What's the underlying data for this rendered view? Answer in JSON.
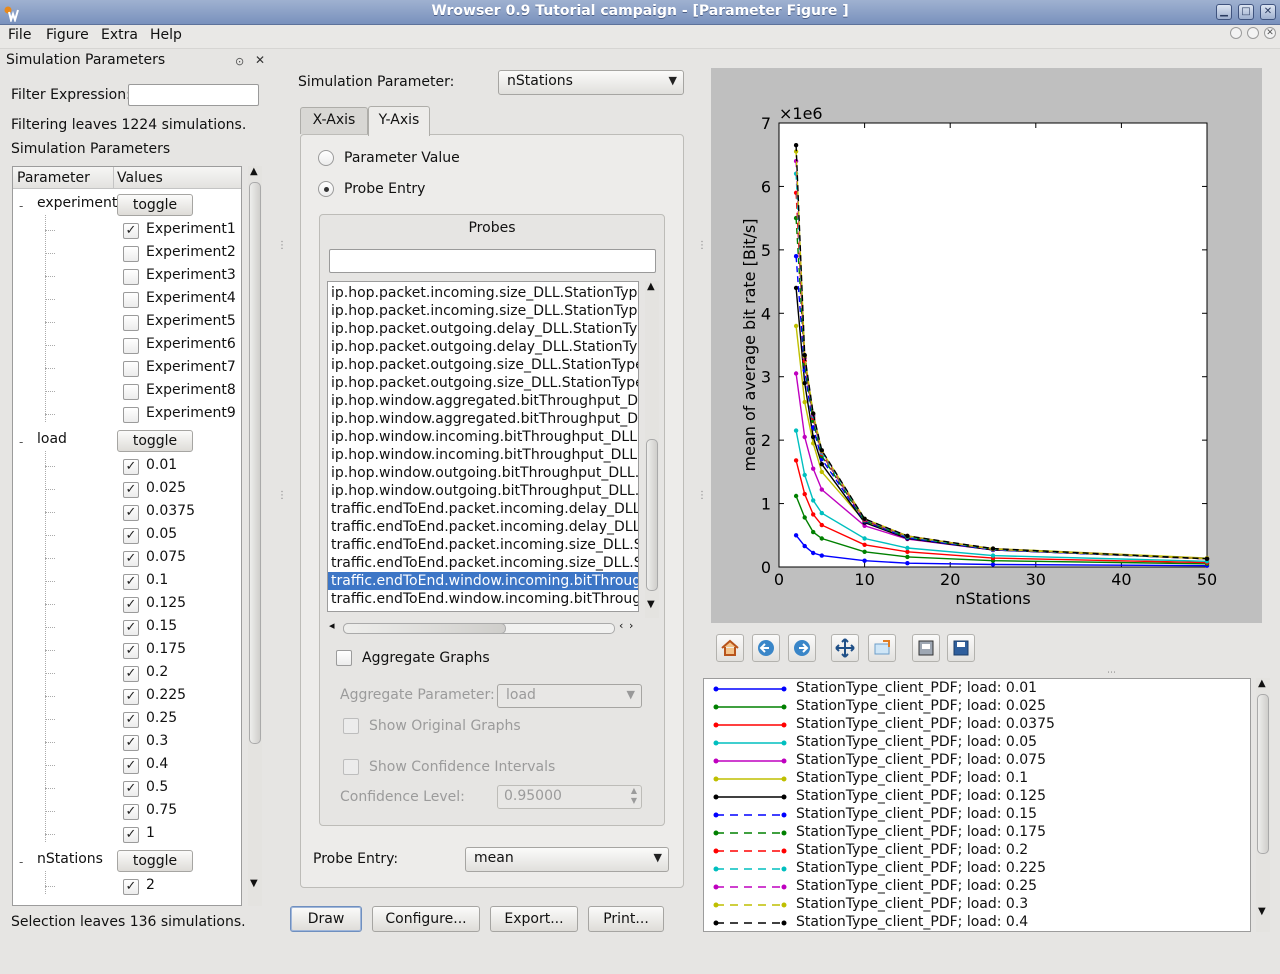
{
  "window": {
    "title": "Wrowser 0.9 Tutorial campaign - [Parameter Figure ]"
  },
  "menu": [
    "File",
    "Figure",
    "Extra",
    "Help"
  ],
  "left_dock": {
    "title": "Simulation Parameters",
    "filter_label": "Filter Expression:",
    "filter_value": "",
    "filter_status": "Filtering leaves 1224 simulations.",
    "section_label": "Simulation Parameters",
    "col_parameter": "Parameter",
    "col_values": "Values",
    "toggle_label": "toggle",
    "groups": [
      {
        "name": "experiment",
        "items": [
          {
            "label": "Experiment1",
            "checked": true
          },
          {
            "label": "Experiment2",
            "checked": false
          },
          {
            "label": "Experiment3",
            "checked": false
          },
          {
            "label": "Experiment4",
            "checked": false
          },
          {
            "label": "Experiment5",
            "checked": false
          },
          {
            "label": "Experiment6",
            "checked": false
          },
          {
            "label": "Experiment7",
            "checked": false
          },
          {
            "label": "Experiment8",
            "checked": false
          },
          {
            "label": "Experiment9",
            "checked": false
          }
        ]
      },
      {
        "name": "load",
        "items": [
          {
            "label": "0.01",
            "checked": true
          },
          {
            "label": "0.025",
            "checked": true
          },
          {
            "label": "0.0375",
            "checked": true
          },
          {
            "label": "0.05",
            "checked": true
          },
          {
            "label": "0.075",
            "checked": true
          },
          {
            "label": "0.1",
            "checked": true
          },
          {
            "label": "0.125",
            "checked": true
          },
          {
            "label": "0.15",
            "checked": true
          },
          {
            "label": "0.175",
            "checked": true
          },
          {
            "label": "0.2",
            "checked": true
          },
          {
            "label": "0.225",
            "checked": true
          },
          {
            "label": "0.25",
            "checked": true
          },
          {
            "label": "0.3",
            "checked": true
          },
          {
            "label": "0.4",
            "checked": true
          },
          {
            "label": "0.5",
            "checked": true
          },
          {
            "label": "0.75",
            "checked": true
          },
          {
            "label": "1",
            "checked": true
          }
        ]
      },
      {
        "name": "nStations",
        "items": [
          {
            "label": "2",
            "checked": true
          }
        ]
      }
    ],
    "selection_status": "Selection leaves 136 simulations."
  },
  "center": {
    "sim_param_label": "Simulation Parameter:",
    "sim_param_value": "nStations",
    "tabs": [
      "X-Axis",
      "Y-Axis"
    ],
    "active_tab": "Y-Axis",
    "radio_param": "Parameter Value",
    "radio_probe": "Probe Entry",
    "probes_title": "Probes",
    "probe_filter": "",
    "probes": [
      "ip.hop.packet.incoming.size_DLL.StationType_client_PDF",
      "ip.hop.packet.incoming.size_DLL.StationType_router_PDF",
      "ip.hop.packet.outgoing.delay_DLL.StationType_client_PDF",
      "ip.hop.packet.outgoing.delay_DLL.StationType_router_PDF",
      "ip.hop.packet.outgoing.size_DLL.StationType_client_PDF",
      "ip.hop.packet.outgoing.size_DLL.StationType_router_PDF",
      "ip.hop.window.aggregated.bitThroughput_DLL.StationType_client_PDF",
      "ip.hop.window.aggregated.bitThroughput_DLL.StationType_router_PDF",
      "ip.hop.window.incoming.bitThroughput_DLL.StationType_client_PDF",
      "ip.hop.window.incoming.bitThroughput_DLL.StationType_router_PDF",
      "ip.hop.window.outgoing.bitThroughput_DLL.StationType_client_PDF",
      "ip.hop.window.outgoing.bitThroughput_DLL.StationType_router_PDF",
      "traffic.endToEnd.packet.incoming.delay_DLL.StationType_client_PDF",
      "traffic.endToEnd.packet.incoming.delay_DLL.StationType_router_PDF",
      "traffic.endToEnd.packet.incoming.size_DLL.StationType_client_PDF",
      "traffic.endToEnd.packet.incoming.size_DLL.StationType_router_PDF",
      "traffic.endToEnd.window.incoming.bitThroughput_DLL.StationType_client_PDF",
      "traffic.endToEnd.window.incoming.bitThroughput_DLL.StationType_router_PDF"
    ],
    "selected_probe_index": 16,
    "aggregate_graphs": "Aggregate Graphs",
    "aggregate_param_label": "Aggregate Parameter:",
    "aggregate_param_value": "load",
    "show_original": "Show Original Graphs",
    "show_confidence": "Show Confidence Intervals",
    "confidence_label": "Confidence Level:",
    "confidence_value": "0.95000",
    "probe_entry_label": "Probe Entry:",
    "probe_entry_value": "mean"
  },
  "buttons": {
    "draw": "Draw",
    "configure": "Configure...",
    "export": "Export...",
    "print": "Print..."
  },
  "toolbar_icons": [
    "home-icon",
    "back-icon",
    "forward-icon",
    "pan-icon",
    "zoom-icon",
    "subplots-icon",
    "save-icon"
  ],
  "chart_data": {
    "type": "line",
    "xlabel": "nStations",
    "ylabel": "mean of average bit rate [Bit/s]",
    "y_multiplier": "×1e6",
    "xlim": [
      0,
      50
    ],
    "ylim": [
      0,
      7
    ],
    "xticks": [
      "0",
      "10",
      "20",
      "30",
      "40",
      "50"
    ],
    "yticks": [
      "0",
      "1",
      "2",
      "3",
      "4",
      "5",
      "6",
      "7"
    ],
    "grid": false,
    "x": [
      2,
      3,
      4,
      5,
      10,
      15,
      25,
      50
    ],
    "series": [
      {
        "name": "StationType_client_PDF; load: 0.01",
        "color": "#0000ff",
        "dash": false,
        "values": [
          0.5,
          0.33,
          0.22,
          0.18,
          0.1,
          0.06,
          0.04,
          0.02
        ]
      },
      {
        "name": "StationType_client_PDF; load: 0.025",
        "color": "#008000",
        "dash": false,
        "values": [
          1.12,
          0.78,
          0.55,
          0.45,
          0.24,
          0.16,
          0.1,
          0.05
        ]
      },
      {
        "name": "StationType_client_PDF; load: 0.0375",
        "color": "#ff0000",
        "dash": false,
        "values": [
          1.68,
          1.15,
          0.83,
          0.66,
          0.35,
          0.24,
          0.14,
          0.07
        ]
      },
      {
        "name": "StationType_client_PDF; load: 0.05",
        "color": "#00bfbf",
        "dash": false,
        "values": [
          2.15,
          1.45,
          1.05,
          0.85,
          0.45,
          0.3,
          0.18,
          0.09
        ]
      },
      {
        "name": "StationType_client_PDF; load: 0.075",
        "color": "#bf00bf",
        "dash": false,
        "values": [
          3.05,
          2.05,
          1.55,
          1.22,
          0.65,
          0.44,
          0.27,
          0.13
        ]
      },
      {
        "name": "StationType_client_PDF; load: 0.1",
        "color": "#bfbf00",
        "dash": false,
        "values": [
          3.8,
          2.6,
          1.95,
          1.5,
          0.72,
          0.48,
          0.29,
          0.14
        ]
      },
      {
        "name": "StationType_client_PDF; load: 0.125",
        "color": "#000000",
        "dash": false,
        "values": [
          4.4,
          2.9,
          2.05,
          1.62,
          0.7,
          0.45,
          0.27,
          0.13
        ]
      },
      {
        "name": "StationType_client_PDF; load: 0.15",
        "color": "#0000ff",
        "dash": true,
        "values": [
          4.9,
          3.1,
          2.2,
          1.7,
          0.72,
          0.46,
          0.27,
          0.13
        ]
      },
      {
        "name": "StationType_client_PDF; load: 0.175",
        "color": "#008000",
        "dash": true,
        "values": [
          5.5,
          3.2,
          2.3,
          1.75,
          0.73,
          0.47,
          0.28,
          0.13
        ]
      },
      {
        "name": "StationType_client_PDF; load: 0.2",
        "color": "#ff0000",
        "dash": true,
        "values": [
          5.9,
          3.25,
          2.35,
          1.78,
          0.74,
          0.48,
          0.28,
          0.13
        ]
      },
      {
        "name": "StationType_client_PDF; load: 0.225",
        "color": "#00bfbf",
        "dash": true,
        "values": [
          6.2,
          3.3,
          2.38,
          1.8,
          0.75,
          0.48,
          0.28,
          0.13
        ]
      },
      {
        "name": "StationType_client_PDF; load: 0.25",
        "color": "#bf00bf",
        "dash": true,
        "values": [
          6.4,
          3.3,
          2.4,
          1.82,
          0.75,
          0.49,
          0.28,
          0.13
        ]
      },
      {
        "name": "StationType_client_PDF; load: 0.3",
        "color": "#bfbf00",
        "dash": true,
        "values": [
          6.55,
          3.32,
          2.42,
          1.83,
          0.76,
          0.49,
          0.28,
          0.13
        ]
      },
      {
        "name": "StationType_client_PDF; load: 0.4",
        "color": "#000000",
        "dash": true,
        "values": [
          6.65,
          3.34,
          2.42,
          1.84,
          0.76,
          0.49,
          0.29,
          0.13
        ]
      }
    ]
  }
}
